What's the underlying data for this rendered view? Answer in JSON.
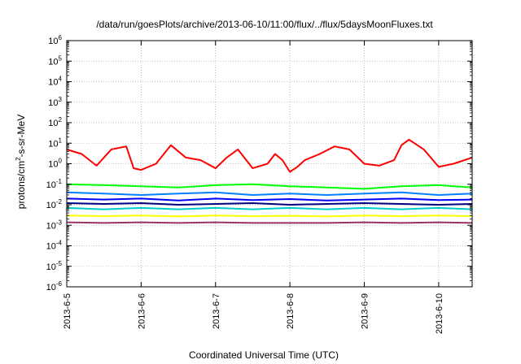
{
  "chart_data": {
    "type": "line",
    "title": "/data/run/goesPlots/archive/2013-06-10/11:00/flux/../flux/5daysMoonFluxes.txt",
    "xlabel": "Coordinated Universal Time (UTC)",
    "ylabel_parts": [
      "protons/cm",
      "2",
      "-s-sr-MeV"
    ],
    "y_scale": "log",
    "ylim_exponent": [
      -6,
      6
    ],
    "y_tick_exponents": [
      "-6",
      "-5",
      "-4",
      "-3",
      "-2",
      "-1",
      "0",
      "1",
      "2",
      "3",
      "4",
      "5",
      "6"
    ],
    "y_tick_base": "10",
    "x_ticks": [
      "2013-6-5",
      "2013-6-6",
      "2013-6-7",
      "2013-6-8",
      "2013-6-9",
      "2013-6-10"
    ],
    "x_range_days": [
      0,
      5.45
    ],
    "grid": true,
    "legend": "none",
    "series": [
      {
        "color": "#ff0000",
        "x": [
          0,
          0.2,
          0.4,
          0.6,
          0.8,
          0.9,
          1.0,
          1.2,
          1.4,
          1.6,
          1.8,
          2.0,
          2.15,
          2.3,
          2.5,
          2.7,
          2.8,
          2.9,
          3.0,
          3.1,
          3.2,
          3.4,
          3.6,
          3.8,
          4.0,
          4.2,
          4.4,
          4.5,
          4.6,
          4.8,
          5.0,
          5.2,
          5.45
        ],
        "y": [
          5,
          3,
          0.8,
          5,
          7,
          0.6,
          0.5,
          1.0,
          8,
          2,
          1.5,
          0.6,
          2,
          5,
          0.6,
          1.0,
          3,
          1.5,
          0.4,
          0.7,
          1.5,
          3,
          7,
          5,
          1.0,
          0.8,
          1.5,
          8,
          15,
          5,
          0.7,
          1.0,
          2
        ]
      },
      {
        "color": "#00ff00",
        "x": [
          0,
          0.5,
          1.0,
          1.5,
          2.0,
          2.5,
          3.0,
          3.5,
          4.0,
          4.5,
          5.0,
          5.45
        ],
        "y": [
          0.1,
          0.09,
          0.08,
          0.07,
          0.09,
          0.1,
          0.08,
          0.07,
          0.06,
          0.08,
          0.09,
          0.07
        ]
      },
      {
        "color": "#0080ff",
        "x": [
          0,
          0.5,
          1.0,
          1.5,
          2.0,
          2.5,
          3.0,
          3.5,
          4.0,
          4.5,
          5.0,
          5.45
        ],
        "y": [
          0.04,
          0.035,
          0.03,
          0.035,
          0.04,
          0.03,
          0.035,
          0.03,
          0.035,
          0.04,
          0.03,
          0.035
        ]
      },
      {
        "color": "#0000ff",
        "x": [
          0,
          0.5,
          1.0,
          1.5,
          2.0,
          2.5,
          3.0,
          3.5,
          4.0,
          4.5,
          5.0,
          5.45
        ],
        "y": [
          0.02,
          0.018,
          0.02,
          0.016,
          0.02,
          0.017,
          0.019,
          0.016,
          0.018,
          0.02,
          0.017,
          0.018
        ]
      },
      {
        "color": "#000080",
        "x": [
          0,
          0.5,
          1.0,
          1.5,
          2.0,
          2.5,
          3.0,
          3.5,
          4.0,
          4.5,
          5.0,
          5.45
        ],
        "y": [
          0.012,
          0.011,
          0.012,
          0.01,
          0.011,
          0.012,
          0.01,
          0.011,
          0.012,
          0.011,
          0.01,
          0.011
        ]
      },
      {
        "color": "#00cccc",
        "x": [
          0,
          0.5,
          1.0,
          1.5,
          2.0,
          2.5,
          3.0,
          3.5,
          4.0,
          4.5,
          5.0,
          5.45
        ],
        "y": [
          0.007,
          0.006,
          0.007,
          0.006,
          0.007,
          0.006,
          0.007,
          0.006,
          0.007,
          0.006,
          0.007,
          0.006
        ]
      },
      {
        "color": "#ffff00",
        "x": [
          0,
          0.5,
          1.0,
          1.5,
          2.0,
          2.5,
          3.0,
          3.5,
          4.0,
          4.5,
          5.0,
          5.45
        ],
        "y": [
          0.003,
          0.0028,
          0.003,
          0.0027,
          0.003,
          0.0028,
          0.0029,
          0.0027,
          0.003,
          0.0028,
          0.003,
          0.0028
        ]
      },
      {
        "color": "#993366",
        "x": [
          0,
          0.5,
          1.0,
          1.5,
          2.0,
          2.5,
          3.0,
          3.5,
          4.0,
          4.5,
          5.0,
          5.45
        ],
        "y": [
          0.0014,
          0.0013,
          0.0014,
          0.0013,
          0.0014,
          0.0013,
          0.0013,
          0.0013,
          0.0014,
          0.0013,
          0.0014,
          0.0013
        ]
      }
    ]
  }
}
